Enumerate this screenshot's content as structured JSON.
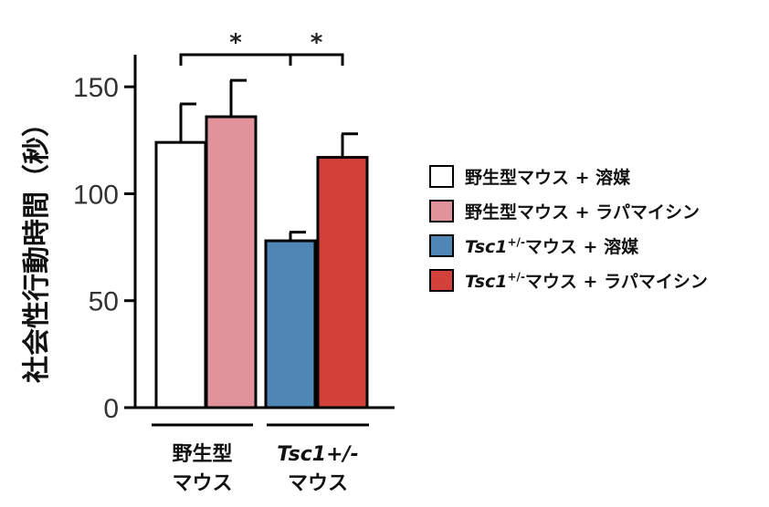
{
  "chart_data": {
    "type": "bar",
    "ylabel": "社会性行動時間（秒）",
    "ylim": [
      0,
      165
    ],
    "yticks": [
      0,
      50,
      100,
      150
    ],
    "groups": [
      {
        "label_lines": [
          "野生型",
          "マウス"
        ],
        "italic_first_line": false
      },
      {
        "label_lines": [
          "Tsc1+/-",
          "マウス"
        ],
        "italic_first_line": true
      }
    ],
    "bars": [
      {
        "series": "野生型マウス + 溶媒",
        "group": 0,
        "value": 124,
        "error": 18,
        "color": "#ffffff"
      },
      {
        "series": "野生型マウス + ラパマイシン",
        "group": 0,
        "value": 136,
        "error": 17,
        "color": "#e0939a"
      },
      {
        "series": "Tsc1+/-マウス + 溶媒",
        "group": 1,
        "value": 78,
        "error": 4,
        "color": "#4e86b6"
      },
      {
        "series": "Tsc1+/-マウス + ラパマイシン",
        "group": 1,
        "value": 117,
        "error": 11,
        "color": "#d2413a"
      }
    ],
    "significance": [
      {
        "from": 0,
        "to": 2,
        "label": "*"
      },
      {
        "from": 2,
        "to": 3,
        "label": "*"
      }
    ]
  },
  "legend": [
    {
      "italic": "",
      "sup": "",
      "text": "野生型マウス + 溶媒",
      "color": "#ffffff"
    },
    {
      "italic": "",
      "sup": "",
      "text": "野生型マウス + ラパマイシン",
      "color": "#e0939a"
    },
    {
      "italic": "Tsc1",
      "sup": "+/-",
      "text": "マウス + 溶媒",
      "color": "#4e86b6"
    },
    {
      "italic": "Tsc1",
      "sup": "+/-",
      "text": "マウス + ラパマイシン",
      "color": "#d2413a"
    }
  ]
}
